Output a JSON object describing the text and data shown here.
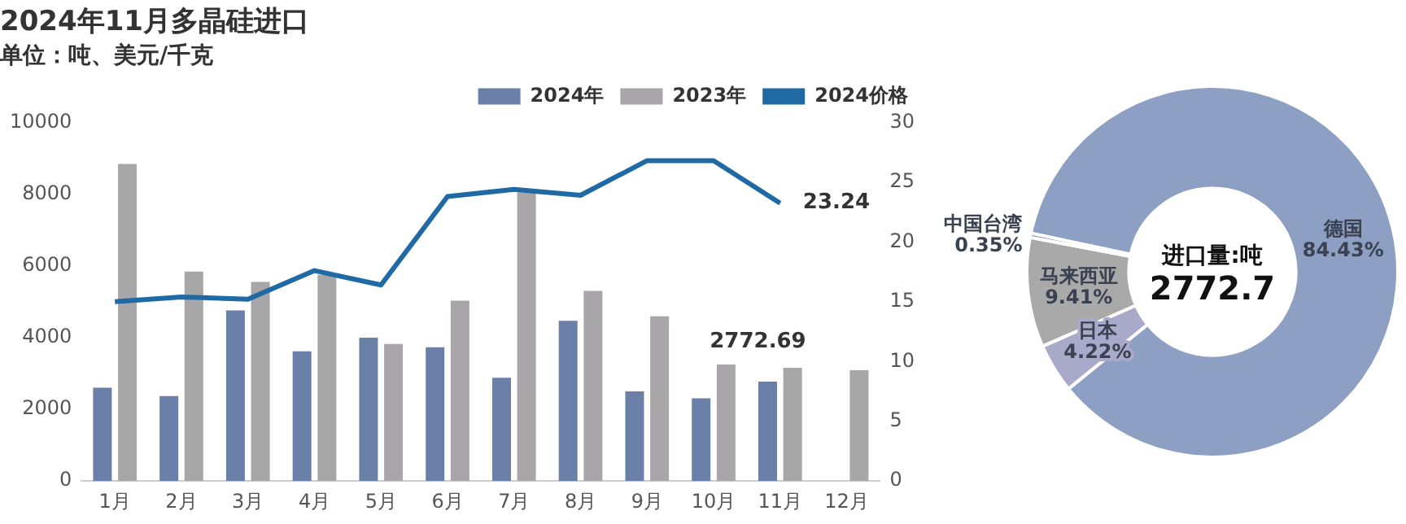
{
  "chart_data": [
    {
      "type": "bar",
      "title": "2024年11月多晶硅进口",
      "subtitle": "单位：吨、美元/千克",
      "categories": [
        "1月",
        "2月",
        "3月",
        "4月",
        "5月",
        "6月",
        "7月",
        "8月",
        "9月",
        "10月",
        "11月",
        "12月"
      ],
      "series": [
        {
          "name": "2024年",
          "color": "#6b80a8",
          "values": [
            2600,
            2370,
            4760,
            3620,
            4000,
            3730,
            2880,
            4470,
            2500,
            2310,
            2772.69,
            null
          ],
          "value_labels": [
            null,
            null,
            null,
            null,
            null,
            null,
            null,
            null,
            null,
            null,
            "2772.69",
            null
          ]
        },
        {
          "name": "2023年",
          "color": "#a8a6a8",
          "values": [
            8840,
            5840,
            5550,
            5750,
            3820,
            5030,
            8050,
            5300,
            4590,
            3250,
            3160,
            3090
          ]
        },
        {
          "name": "2024价格",
          "type": "line",
          "axis": "y2",
          "color": "#1f6aa5",
          "values": [
            15.0,
            15.4,
            15.2,
            17.6,
            16.4,
            23.8,
            24.4,
            23.9,
            26.8,
            26.8,
            23.24,
            null
          ],
          "value_labels": [
            null,
            null,
            null,
            null,
            null,
            null,
            null,
            null,
            null,
            null,
            "23.24",
            null
          ]
        }
      ],
      "ylim": [
        0,
        10000
      ],
      "yticks": [
        0,
        2000,
        4000,
        6000,
        8000,
        10000
      ],
      "y2lim": [
        0,
        30
      ],
      "y2ticks": [
        0,
        5,
        10,
        15,
        20,
        25,
        30
      ],
      "grid": false,
      "legend": "top",
      "marker": "none",
      "line_style": "solid"
    },
    {
      "type": "donut",
      "categories": [
        "德国",
        "日本",
        "马来西亚",
        "中国台湾"
      ],
      "values": [
        84.43,
        4.22,
        9.41,
        0.35
      ],
      "colors": [
        "#8e9fc4",
        "#a9aac9",
        "#a9a9a9",
        "#6a7fa8"
      ],
      "value_labels": [
        "84.43%",
        "4.22%",
        "9.41%",
        "0.35%"
      ],
      "annotations": [
        "进口量:吨",
        "2772.7"
      ],
      "legend": false
    }
  ]
}
